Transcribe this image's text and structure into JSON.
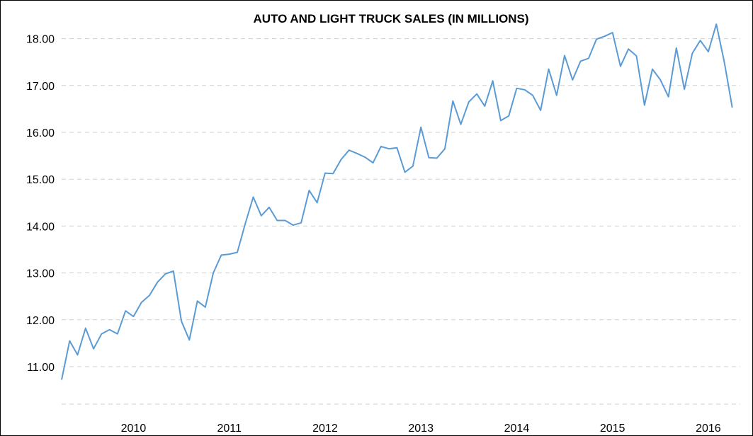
{
  "chart_data": {
    "type": "line",
    "title": "AUTO AND LIGHT TRUCK SALES (IN MILLIONS)",
    "xlabel": "",
    "ylabel": "",
    "grid": true,
    "line_color": "#5b9bd5",
    "x_tick_labels": [
      "2010",
      "2011",
      "2012",
      "2013",
      "2014",
      "2015",
      "2016"
    ],
    "y_tick_labels": [
      "11.00",
      "12.00",
      "13.00",
      "14.00",
      "15.00",
      "16.00",
      "17.00",
      "18.00"
    ],
    "xlim": [
      "2009-09",
      "2016-10"
    ],
    "ylim": [
      10.0,
      18.6
    ],
    "series": [
      {
        "x": [
          "2009-09",
          "2009-10",
          "2009-11",
          "2009-12",
          "2010-01",
          "2010-02",
          "2010-03",
          "2010-04",
          "2010-05",
          "2010-06",
          "2010-07",
          "2010-08",
          "2010-09",
          "2010-10",
          "2010-11",
          "2010-12",
          "2011-01",
          "2011-02",
          "2011-03",
          "2011-04",
          "2011-05",
          "2011-06",
          "2011-07",
          "2011-08",
          "2011-09",
          "2011-10",
          "2011-11",
          "2011-12",
          "2012-01",
          "2012-02",
          "2012-03",
          "2012-04",
          "2012-05",
          "2012-06",
          "2012-07",
          "2012-08",
          "2012-09",
          "2012-10",
          "2012-11",
          "2012-12",
          "2013-01",
          "2013-02",
          "2013-03",
          "2013-04",
          "2013-05",
          "2013-06",
          "2013-07",
          "2013-08",
          "2013-09",
          "2013-10",
          "2013-11",
          "2013-12",
          "2014-01",
          "2014-02",
          "2014-03",
          "2014-04",
          "2014-05",
          "2014-06",
          "2014-07",
          "2014-08",
          "2014-09",
          "2014-10",
          "2014-11",
          "2014-12",
          "2015-01",
          "2015-02",
          "2015-03",
          "2015-04",
          "2015-05",
          "2015-06",
          "2015-07",
          "2015-08",
          "2015-09",
          "2015-10",
          "2015-11",
          "2015-12",
          "2016-01",
          "2016-02",
          "2016-03",
          "2016-04",
          "2016-05",
          "2016-06",
          "2016-07",
          "2016-08",
          "2016-09"
        ],
        "values": [
          10.72,
          11.55,
          11.25,
          11.82,
          11.38,
          11.7,
          11.79,
          11.7,
          12.19,
          12.07,
          12.37,
          12.52,
          12.8,
          12.98,
          13.04,
          11.97,
          11.57,
          12.4,
          12.27,
          13.0,
          13.38,
          13.4,
          13.44,
          14.05,
          14.62,
          14.22,
          14.4,
          14.12,
          14.12,
          14.02,
          14.07,
          14.76,
          14.5,
          15.13,
          15.12,
          15.42,
          15.62,
          15.55,
          15.47,
          15.35,
          15.7,
          15.65,
          15.67,
          15.15,
          15.28,
          16.11,
          15.46,
          15.45,
          15.65,
          16.67,
          16.17,
          16.65,
          16.82,
          16.56,
          17.1,
          16.25,
          16.35,
          16.94,
          16.91,
          16.79,
          16.47,
          17.35,
          16.79,
          17.64,
          17.12,
          17.52,
          17.58,
          17.99,
          18.05,
          18.13,
          17.41,
          17.78,
          17.63,
          16.58,
          17.35,
          17.12,
          16.76,
          17.8,
          16.92,
          17.69,
          17.96,
          17.72,
          18.31,
          17.5,
          16.53
        ]
      }
    ]
  }
}
